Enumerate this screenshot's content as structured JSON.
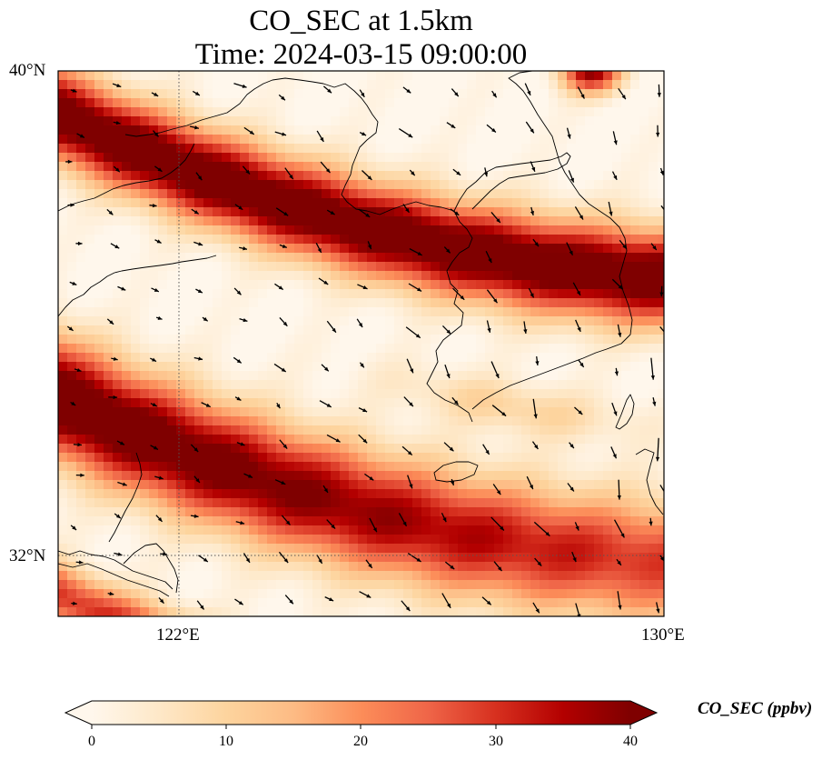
{
  "map": {
    "title_line1": "CO_SEC at 1.5km",
    "title_line2": "Time: 2024-03-15 09:00:00",
    "variable": "CO_SEC",
    "height": "1.5km",
    "time": "2024-03-15 09:00:00",
    "lat_range": [
      31,
      40
    ],
    "lon_range": [
      120,
      130
    ],
    "lat_labels": [
      "40°N",
      "32°N"
    ],
    "lon_labels": [
      "122°E",
      "130°E"
    ],
    "gridlines": {
      "lat": 32,
      "lon": 122,
      "style": "dotted"
    },
    "overlays": [
      "coastlines",
      "wind-vectors"
    ]
  },
  "colorbar": {
    "label": "CO_SEC (ppbv)",
    "ticks": [
      "0",
      "10",
      "20",
      "30",
      "40"
    ],
    "min": 0,
    "max": 40,
    "extend": "both",
    "cmap_colors": [
      "#fff7ec",
      "#fee8c8",
      "#fdd49e",
      "#fdbb84",
      "#fc8d59",
      "#ef6548",
      "#d7301f",
      "#b30000",
      "#7f0000"
    ]
  }
}
